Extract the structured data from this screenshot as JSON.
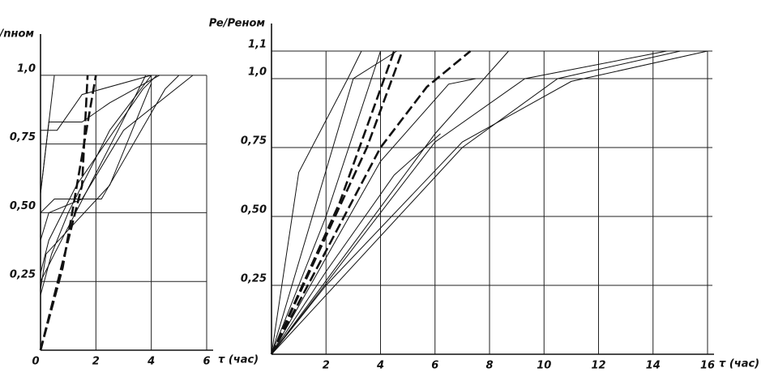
{
  "chart_data": [
    {
      "type": "line",
      "ylabel": "n/nном",
      "xlabel": "τ (час)",
      "color": "#111",
      "xlim": [
        0,
        6
      ],
      "ylim": [
        0,
        1.15
      ],
      "xticks": [
        0,
        2,
        4,
        6
      ],
      "yticks": [
        {
          "value": 0.25,
          "label": "0,25"
        },
        {
          "value": 0.5,
          "label": "0,50"
        },
        {
          "value": 0.75,
          "label": "0,75"
        },
        {
          "value": 1.0,
          "label": "1,0"
        }
      ],
      "grid": true,
      "series": [
        {
          "style": "dashed",
          "x": [
            0,
            1.5,
            1.7
          ],
          "values": [
            0,
            0.6,
            1.0
          ]
        },
        {
          "style": "dashed",
          "x": [
            0,
            0.8,
            1.4,
            2.0
          ],
          "values": [
            0,
            0.3,
            0.65,
            1.0
          ]
        },
        {
          "style": "solid",
          "x": [
            0,
            0.4,
            1,
            2.5,
            4
          ],
          "values": [
            0.2,
            0.35,
            0.5,
            0.8,
            1.0
          ]
        },
        {
          "style": "solid",
          "x": [
            0,
            0.3,
            1.3,
            3.7,
            4.2
          ],
          "values": [
            0.28,
            0.4,
            0.6,
            0.95,
            1.0
          ]
        },
        {
          "style": "solid",
          "x": [
            0,
            0.3,
            1.5,
            3,
            5.5
          ],
          "values": [
            0.4,
            0.5,
            0.55,
            0.8,
            1.0
          ]
        },
        {
          "style": "solid",
          "x": [
            0,
            0.3,
            1.5,
            2.5,
            4.3
          ],
          "values": [
            0.57,
            0.83,
            0.83,
            0.9,
            1.0
          ]
        },
        {
          "style": "solid",
          "x": [
            0,
            0.5,
            2.2,
            4.5,
            5
          ],
          "values": [
            0.5,
            0.55,
            0.55,
            0.95,
            1.0
          ]
        },
        {
          "style": "solid",
          "x": [
            0,
            0.6,
            1.5,
            4
          ],
          "values": [
            0.8,
            0.8,
            0.93,
            1.0
          ]
        },
        {
          "style": "solid",
          "x": [
            0,
            0.5,
            2.8,
            3.8
          ],
          "values": [
            0.25,
            0.35,
            0.8,
            1.0
          ]
        },
        {
          "style": "solid",
          "x": [
            0,
            0.2,
            2.5,
            4
          ],
          "values": [
            0.22,
            0.35,
            0.6,
            0.97
          ]
        },
        {
          "style": "solid",
          "x": [
            0,
            0.5
          ],
          "values": [
            0.57,
            1.0
          ]
        }
      ]
    },
    {
      "type": "line",
      "ylabel": "Pe/Peном",
      "xlabel": "τ (час)",
      "color": "#111",
      "xlim": [
        0,
        16
      ],
      "ylim": [
        0,
        1.2
      ],
      "xticks": [
        2,
        4,
        6,
        8,
        10,
        12,
        14,
        16
      ],
      "yticks": [
        {
          "value": 0.25,
          "label": "0,25"
        },
        {
          "value": 0.5,
          "label": "0,50"
        },
        {
          "value": 0.75,
          "label": "0,75"
        },
        {
          "value": 1.0,
          "label": "1,0"
        },
        {
          "value": 1.1,
          "label": "1,1"
        }
      ],
      "grid": true,
      "series": [
        {
          "style": "solid",
          "x": [
            0,
            1,
            2.8,
            3.3
          ],
          "values": [
            0,
            0.66,
            1.0,
            1.1
          ]
        },
        {
          "style": "solid",
          "x": [
            0,
            3,
            4.6
          ],
          "values": [
            0,
            1.0,
            1.1
          ]
        },
        {
          "style": "solid",
          "x": [
            0,
            2,
            4
          ],
          "values": [
            0,
            0.5,
            1.1
          ]
        },
        {
          "style": "dashed",
          "x": [
            0,
            2.5,
            4.5
          ],
          "values": [
            0,
            0.55,
            1.1
          ]
        },
        {
          "style": "dashed",
          "x": [
            0,
            3.5,
            4.8
          ],
          "values": [
            0,
            0.75,
            1.1
          ]
        },
        {
          "style": "dashed",
          "x": [
            0,
            4,
            5.7,
            7.3
          ],
          "values": [
            0,
            0.75,
            0.97,
            1.1
          ]
        },
        {
          "style": "solid",
          "x": [
            0,
            4,
            6.5,
            7.5
          ],
          "values": [
            0,
            0.7,
            0.98,
            1.0
          ]
        },
        {
          "style": "solid",
          "x": [
            0,
            6,
            8.7
          ],
          "values": [
            0,
            0.8,
            1.1
          ]
        },
        {
          "style": "solid",
          "x": [
            0,
            7,
            10.5,
            15
          ],
          "values": [
            0,
            0.75,
            1.0,
            1.1
          ]
        },
        {
          "style": "solid",
          "x": [
            0,
            2,
            7,
            11,
            16
          ],
          "values": [
            0,
            0.25,
            0.77,
            0.99,
            1.1
          ]
        },
        {
          "style": "solid",
          "x": [
            0,
            6,
            9.3,
            14.5
          ],
          "values": [
            0,
            0.77,
            1.0,
            1.1
          ]
        },
        {
          "style": "solid",
          "x": [
            0,
            2,
            4.5,
            6.2
          ],
          "values": [
            0,
            0.3,
            0.65,
            0.8
          ]
        }
      ]
    }
  ]
}
